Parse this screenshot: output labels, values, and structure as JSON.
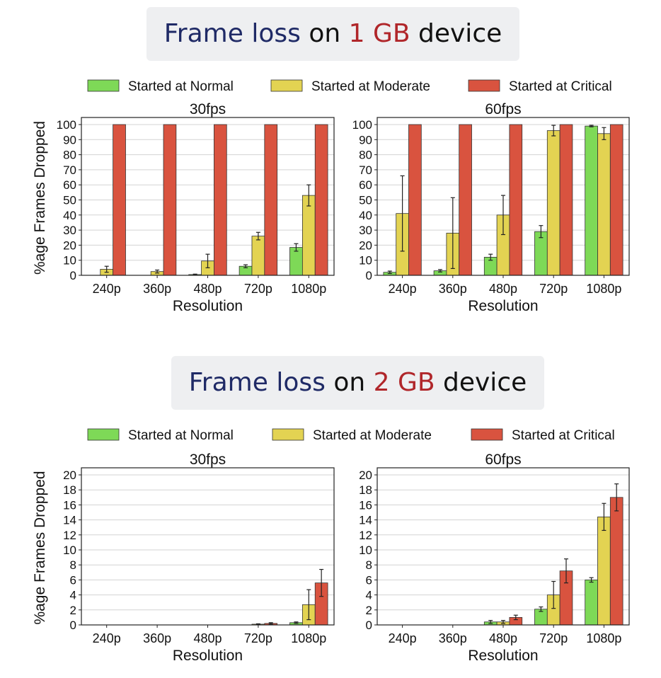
{
  "sections": [
    {
      "title": {
        "part1": "Frame loss",
        "part2": " on ",
        "part3": "1 GB",
        "part4": " device"
      },
      "legend": [
        "Started at Normal",
        "Started at Moderate",
        "Started at Critical"
      ]
    },
    {
      "title": {
        "part1": "Frame loss",
        "part2": " on ",
        "part3": "2 GB",
        "part4": " device"
      },
      "legend": [
        "Started at Normal",
        "Started at Moderate",
        "Started at Critical"
      ]
    }
  ],
  "colors": {
    "normal": "#7ed957",
    "moderate": "#e3d352",
    "critical": "#d9533f",
    "grid": "#d3d3d3"
  },
  "chart_data": [
    {
      "type": "bar",
      "title": "30fps",
      "xlabel": "Resolution",
      "ylabel": "%age Frames Dropped",
      "categories": [
        "240p",
        "360p",
        "480p",
        "720p",
        "1080p"
      ],
      "ylim": [
        0,
        100
      ],
      "yticks": [
        0,
        10,
        20,
        30,
        40,
        50,
        60,
        70,
        80,
        90,
        100
      ],
      "grid": true,
      "legend": "top",
      "series": [
        {
          "name": "Started at Normal",
          "values": [
            0,
            0,
            0.5,
            6,
            18.5
          ],
          "err": [
            0,
            0,
            0.3,
            1,
            2.5
          ]
        },
        {
          "name": "Started at Moderate",
          "values": [
            4,
            2.5,
            9.5,
            26,
            53
          ],
          "err": [
            2,
            1,
            4.5,
            2.5,
            7
          ]
        },
        {
          "name": "Started at Critical",
          "values": [
            100,
            100,
            100,
            100,
            100
          ],
          "err": [
            0,
            0,
            0,
            0,
            0
          ]
        }
      ]
    },
    {
      "type": "bar",
      "title": "60fps",
      "xlabel": "Resolution",
      "ylabel": "",
      "categories": [
        "240p",
        "360p",
        "480p",
        "720p",
        "1080p"
      ],
      "ylim": [
        0,
        100
      ],
      "yticks": [
        0,
        10,
        20,
        30,
        40,
        50,
        60,
        70,
        80,
        90,
        100
      ],
      "grid": true,
      "legend": "top",
      "series": [
        {
          "name": "Started at Normal",
          "values": [
            2,
            3,
            12,
            29,
            99
          ],
          "err": [
            0.8,
            0.8,
            2,
            4,
            0.5
          ]
        },
        {
          "name": "Started at Moderate",
          "values": [
            41,
            28,
            40,
            96,
            94
          ],
          "err": [
            25,
            23.5,
            13,
            3.5,
            4
          ]
        },
        {
          "name": "Started at Critical",
          "values": [
            100,
            100,
            100,
            100,
            100
          ],
          "err": [
            0,
            0,
            0,
            0,
            0
          ]
        }
      ]
    },
    {
      "type": "bar",
      "title": "30fps",
      "xlabel": "Resolution",
      "ylabel": "%age Frames Dropped",
      "categories": [
        "240p",
        "360p",
        "480p",
        "720p",
        "1080p"
      ],
      "ylim": [
        0,
        20
      ],
      "yticks": [
        0,
        2,
        4,
        6,
        8,
        10,
        12,
        14,
        16,
        18,
        20
      ],
      "grid": true,
      "legend": "top",
      "series": [
        {
          "name": "Started at Normal",
          "values": [
            0,
            0,
            0,
            0,
            0.3
          ],
          "err": [
            0,
            0,
            0,
            0,
            0.1
          ]
        },
        {
          "name": "Started at Moderate",
          "values": [
            0,
            0,
            0,
            0.1,
            2.7
          ],
          "err": [
            0,
            0,
            0,
            0.05,
            2
          ]
        },
        {
          "name": "Started at Critical",
          "values": [
            0,
            0,
            0,
            0.2,
            5.6
          ],
          "err": [
            0,
            0,
            0,
            0.1,
            1.8
          ]
        }
      ]
    },
    {
      "type": "bar",
      "title": "60fps",
      "xlabel": "Resolution",
      "ylabel": "",
      "categories": [
        "240p",
        "360p",
        "480p",
        "720p",
        "1080p"
      ],
      "ylim": [
        0,
        20
      ],
      "yticks": [
        0,
        2,
        4,
        6,
        8,
        10,
        12,
        14,
        16,
        18,
        20
      ],
      "grid": true,
      "legend": "top",
      "series": [
        {
          "name": "Started at Normal",
          "values": [
            0,
            0,
            0.4,
            2.1,
            6
          ],
          "err": [
            0,
            0,
            0.2,
            0.3,
            0.3
          ]
        },
        {
          "name": "Started at Moderate",
          "values": [
            0,
            0,
            0.4,
            4,
            14.4
          ],
          "err": [
            0,
            0,
            0.2,
            1.8,
            1.8
          ]
        },
        {
          "name": "Started at Critical",
          "values": [
            0,
            0,
            1,
            7.2,
            17
          ],
          "err": [
            0,
            0,
            0.3,
            1.6,
            1.8
          ]
        }
      ]
    }
  ]
}
